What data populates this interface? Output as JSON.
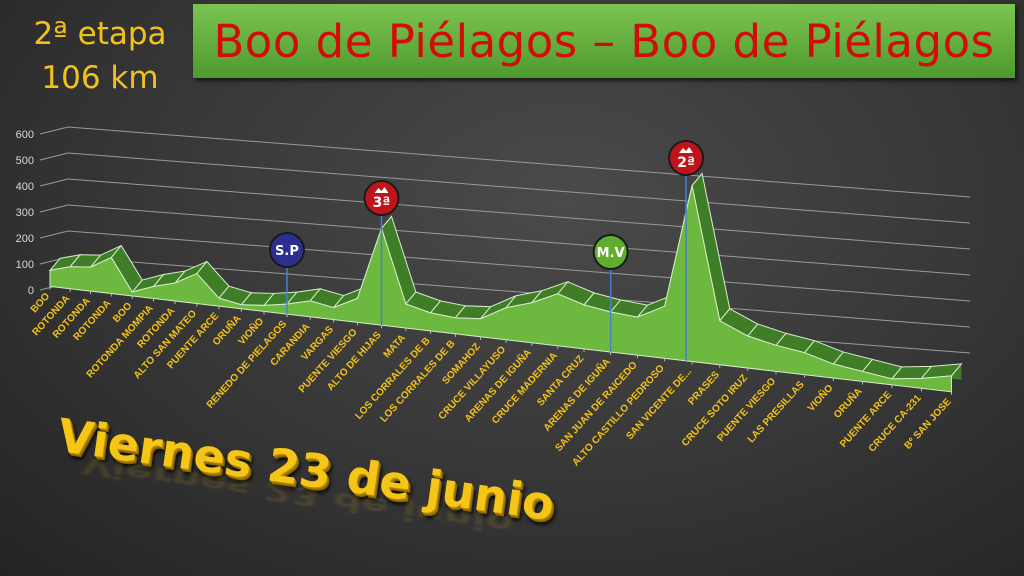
{
  "header": {
    "stage": "2ª etapa",
    "distance": "106 km",
    "title": "Boo de Piélagos – Boo de Piélagos",
    "date": "Viernes 23 de junio"
  },
  "colors": {
    "title_text": "#d40b0b",
    "banner": "#5fae38",
    "label_text": "#f2c21b",
    "area_front": "#6db83e",
    "area_band": "#3f7d27"
  },
  "chart_data": {
    "type": "area",
    "style": "3d",
    "ylim": [
      0,
      600
    ],
    "yticks": [
      "0",
      "100",
      "200",
      "300",
      "400",
      "500",
      "600"
    ],
    "grid": true,
    "categories": [
      "BOO",
      "ROTONDA",
      "ROTONDA",
      "ROTONDA",
      "BOO",
      "ROTONDA MOMPIA",
      "ROTONDA",
      "ALTO SAN MATEO",
      "PUENTE ARCE",
      "ORUÑA",
      "VIOÑO",
      "RENEDO DE PIELAGOS",
      "CARANDIA",
      "VARGAS",
      "PUENTE VIESGO",
      "ALTO DE HIJAS",
      "MATA",
      "LOS CORRALES DE B",
      "LOS CORRALES DE B",
      "SOMAHOZ",
      "CRUCE VILLAYUSO",
      "ARENAS DE IGUÑA",
      "CRUCE MADERNIA",
      "SANTA CRUZ",
      "ARENAS DE IGUÑA",
      "SAN JUAN DE RAICEDO",
      "ALTO CASTILLO PEDROSO",
      "SAN VICENTE DE...",
      "PRASES",
      "CRUCE SOTO IRUZ",
      "PUENTE VIESGO",
      "LAS PRESILLAS",
      "VIOÑO",
      "ORUÑA",
      "PUENTE ARCE",
      "CRUCE CA-231",
      "Bº SAN JOSE"
    ],
    "values": [
      40,
      55,
      60,
      90,
      10,
      30,
      45,
      75,
      20,
      10,
      15,
      25,
      40,
      30,
      60,
      242,
      60,
      45,
      40,
      45,
      80,
      100,
      130,
      110,
      100,
      95,
      130,
      440,
      110,
      80,
      65,
      55,
      35,
      25,
      15,
      25,
      40
    ],
    "markers": [
      {
        "label": "S.P",
        "category_index": 11,
        "color": "#2b2f8f",
        "type": "sprint"
      },
      {
        "label": "3ª",
        "category_index": 15,
        "color": "#c0141b",
        "type": "climb"
      },
      {
        "label": "M.V",
        "category_index": 24,
        "color": "#5fae2e",
        "type": "goal"
      },
      {
        "label": "2ª",
        "category_index": 27,
        "color": "#c0141b",
        "type": "climb"
      }
    ]
  }
}
